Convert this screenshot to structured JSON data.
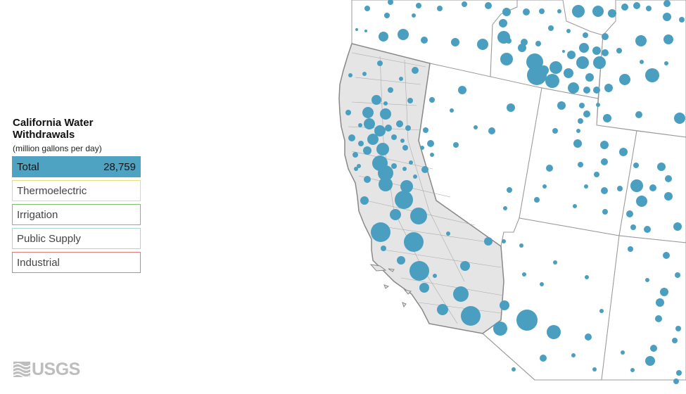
{
  "legend": {
    "title": "California Water Withdrawals",
    "subtitle": "(million gallons per day)",
    "categories": [
      {
        "label": "Total",
        "value": "28,759",
        "color": "#4fa3c2",
        "active": true
      },
      {
        "label": "Thermoelectric",
        "value": "",
        "color": "#e8dc7a",
        "active": false
      },
      {
        "label": "Irrigation",
        "value": "",
        "color": "#7cbf6e",
        "active": false
      },
      {
        "label": "Public Supply",
        "value": "",
        "color": "#a9d6d3",
        "active": false
      },
      {
        "label": "Industrial",
        "value": "",
        "color": "#e07b7b",
        "active": false
      }
    ]
  },
  "map": {
    "highlighted_state": "California",
    "bubble_color": "#4a9fc1",
    "state_fill": "#e5e5e5",
    "background_fill": "#ffffff"
  },
  "logo": {
    "text": "USGS"
  }
}
